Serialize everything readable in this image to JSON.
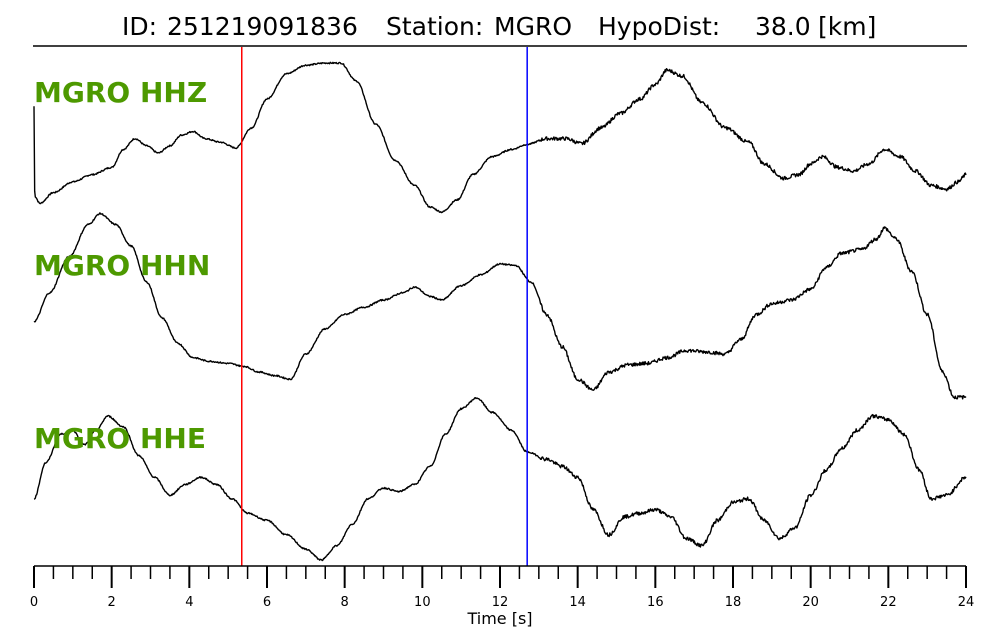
{
  "chart_data": {
    "type": "line",
    "title": {
      "id_label": "ID:",
      "id_value": "251219091836",
      "station_label": "Station:",
      "station_value": "MGRO",
      "dist_label": "HypoDist:",
      "dist_value": "38.0",
      "dist_unit": "[km]"
    },
    "xlabel": "Time [s]",
    "xlim": [
      0,
      24
    ],
    "x_major_ticks": [
      0,
      2,
      4,
      6,
      8,
      10,
      12,
      14,
      16,
      18,
      20,
      22,
      24
    ],
    "x_minor_step": 0.5,
    "label_color": "#4d9900",
    "marker_lines": [
      {
        "time": 5.35,
        "color": "#ff0000"
      },
      {
        "time": 12.7,
        "color": "#0000ff"
      }
    ],
    "series": [
      {
        "name": "MGRO HHZ",
        "points": [
          [
            0,
            0.4
          ],
          [
            0.02,
            -0.85
          ],
          [
            0.15,
            -0.95
          ],
          [
            0.5,
            -0.8
          ],
          [
            1.0,
            -0.65
          ],
          [
            1.5,
            -0.55
          ],
          [
            2.0,
            -0.45
          ],
          [
            2.3,
            -0.2
          ],
          [
            2.6,
            -0.05
          ],
          [
            2.9,
            -0.15
          ],
          [
            3.2,
            -0.25
          ],
          [
            3.5,
            -0.15
          ],
          [
            3.8,
            0.0
          ],
          [
            4.1,
            0.05
          ],
          [
            4.4,
            -0.05
          ],
          [
            4.8,
            -0.1
          ],
          [
            5.2,
            -0.18
          ],
          [
            5.6,
            0.1
          ],
          [
            6.0,
            0.5
          ],
          [
            6.5,
            0.85
          ],
          [
            7.0,
            0.97
          ],
          [
            7.5,
            1.0
          ],
          [
            7.9,
            1.0
          ],
          [
            8.3,
            0.75
          ],
          [
            8.8,
            0.15
          ],
          [
            9.3,
            -0.35
          ],
          [
            9.8,
            -0.7
          ],
          [
            10.2,
            -1.0
          ],
          [
            10.5,
            -1.07
          ],
          [
            10.9,
            -0.9
          ],
          [
            11.3,
            -0.55
          ],
          [
            11.8,
            -0.3
          ],
          [
            12.3,
            -0.2
          ],
          [
            12.7,
            -0.13
          ],
          [
            13.2,
            -0.05
          ],
          [
            13.7,
            -0.05
          ],
          [
            14.1,
            -0.12
          ],
          [
            14.6,
            0.1
          ],
          [
            15.1,
            0.3
          ],
          [
            15.6,
            0.5
          ],
          [
            16.0,
            0.7
          ],
          [
            16.3,
            0.9
          ],
          [
            16.7,
            0.82
          ],
          [
            17.2,
            0.45
          ],
          [
            17.8,
            0.1
          ],
          [
            18.4,
            -0.1
          ],
          [
            18.8,
            -0.4
          ],
          [
            19.3,
            -0.6
          ],
          [
            19.7,
            -0.55
          ],
          [
            20.0,
            -0.4
          ],
          [
            20.3,
            -0.3
          ],
          [
            20.7,
            -0.45
          ],
          [
            21.1,
            -0.5
          ],
          [
            21.5,
            -0.4
          ],
          [
            21.9,
            -0.2
          ],
          [
            22.3,
            -0.3
          ],
          [
            22.7,
            -0.5
          ],
          [
            23.1,
            -0.7
          ],
          [
            23.5,
            -0.75
          ],
          [
            23.8,
            -0.65
          ],
          [
            24.0,
            -0.55
          ]
        ]
      },
      {
        "name": "MGRO HHN",
        "points": [
          [
            0,
            -0.3
          ],
          [
            0.4,
            0.1
          ],
          [
            0.9,
            0.6
          ],
          [
            1.4,
            1.05
          ],
          [
            1.7,
            1.2
          ],
          [
            2.1,
            1.05
          ],
          [
            2.5,
            0.75
          ],
          [
            2.9,
            0.25
          ],
          [
            3.3,
            -0.25
          ],
          [
            3.7,
            -0.6
          ],
          [
            4.1,
            -0.8
          ],
          [
            4.5,
            -0.85
          ],
          [
            5.0,
            -0.88
          ],
          [
            5.4,
            -0.92
          ],
          [
            5.8,
            -1.0
          ],
          [
            6.2,
            -1.05
          ],
          [
            6.6,
            -1.1
          ],
          [
            7.0,
            -0.75
          ],
          [
            7.5,
            -0.4
          ],
          [
            8.0,
            -0.2
          ],
          [
            8.5,
            -0.1
          ],
          [
            9.0,
            0.0
          ],
          [
            9.5,
            0.1
          ],
          [
            9.8,
            0.18
          ],
          [
            10.2,
            0.05
          ],
          [
            10.5,
            0.0
          ],
          [
            11.0,
            0.2
          ],
          [
            11.5,
            0.35
          ],
          [
            12.0,
            0.5
          ],
          [
            12.4,
            0.48
          ],
          [
            12.8,
            0.25
          ],
          [
            13.2,
            -0.2
          ],
          [
            13.6,
            -0.65
          ],
          [
            14.0,
            -1.1
          ],
          [
            14.4,
            -1.25
          ],
          [
            14.8,
            -1.0
          ],
          [
            15.3,
            -0.9
          ],
          [
            15.8,
            -0.88
          ],
          [
            16.3,
            -0.8
          ],
          [
            16.8,
            -0.7
          ],
          [
            17.3,
            -0.72
          ],
          [
            17.8,
            -0.75
          ],
          [
            18.2,
            -0.55
          ],
          [
            18.6,
            -0.2
          ],
          [
            19.0,
            -0.05
          ],
          [
            19.5,
            0.0
          ],
          [
            20.0,
            0.15
          ],
          [
            20.4,
            0.45
          ],
          [
            20.8,
            0.65
          ],
          [
            21.3,
            0.7
          ],
          [
            21.7,
            0.85
          ],
          [
            21.9,
            1.0
          ],
          [
            22.2,
            0.85
          ],
          [
            22.6,
            0.4
          ],
          [
            23.0,
            -0.2
          ],
          [
            23.4,
            -1.0
          ],
          [
            23.7,
            -1.35
          ],
          [
            24.0,
            -1.35
          ]
        ]
      },
      {
        "name": "MGRO HHE",
        "points": [
          [
            0,
            -0.4
          ],
          [
            0.3,
            0.1
          ],
          [
            0.7,
            0.5
          ],
          [
            1.0,
            0.55
          ],
          [
            1.3,
            0.35
          ],
          [
            1.6,
            0.55
          ],
          [
            1.9,
            0.75
          ],
          [
            2.3,
            0.6
          ],
          [
            2.7,
            0.2
          ],
          [
            3.1,
            -0.1
          ],
          [
            3.5,
            -0.35
          ],
          [
            3.9,
            -0.2
          ],
          [
            4.3,
            -0.1
          ],
          [
            4.7,
            -0.2
          ],
          [
            5.1,
            -0.4
          ],
          [
            5.5,
            -0.6
          ],
          [
            6.0,
            -0.7
          ],
          [
            6.5,
            -0.9
          ],
          [
            7.0,
            -1.1
          ],
          [
            7.4,
            -1.25
          ],
          [
            7.8,
            -1.05
          ],
          [
            8.2,
            -0.75
          ],
          [
            8.6,
            -0.4
          ],
          [
            9.0,
            -0.25
          ],
          [
            9.4,
            -0.3
          ],
          [
            9.8,
            -0.2
          ],
          [
            10.2,
            0.05
          ],
          [
            10.6,
            0.5
          ],
          [
            11.0,
            0.85
          ],
          [
            11.4,
            1.0
          ],
          [
            11.8,
            0.8
          ],
          [
            12.3,
            0.55
          ],
          [
            12.7,
            0.25
          ],
          [
            13.2,
            0.15
          ],
          [
            13.6,
            0.05
          ],
          [
            14.0,
            -0.1
          ],
          [
            14.4,
            -0.55
          ],
          [
            14.8,
            -0.9
          ],
          [
            15.2,
            -0.65
          ],
          [
            15.6,
            -0.6
          ],
          [
            16.0,
            -0.55
          ],
          [
            16.4,
            -0.65
          ],
          [
            16.8,
            -0.95
          ],
          [
            17.2,
            -1.05
          ],
          [
            17.6,
            -0.7
          ],
          [
            18.0,
            -0.45
          ],
          [
            18.4,
            -0.4
          ],
          [
            18.8,
            -0.7
          ],
          [
            19.2,
            -0.95
          ],
          [
            19.6,
            -0.8
          ],
          [
            20.0,
            -0.35
          ],
          [
            20.4,
            0.0
          ],
          [
            20.8,
            0.3
          ],
          [
            21.2,
            0.55
          ],
          [
            21.6,
            0.75
          ],
          [
            22.0,
            0.7
          ],
          [
            22.4,
            0.5
          ],
          [
            22.8,
            0.0
          ],
          [
            23.1,
            -0.4
          ],
          [
            23.5,
            -0.35
          ],
          [
            24.0,
            -0.1
          ]
        ]
      }
    ]
  }
}
